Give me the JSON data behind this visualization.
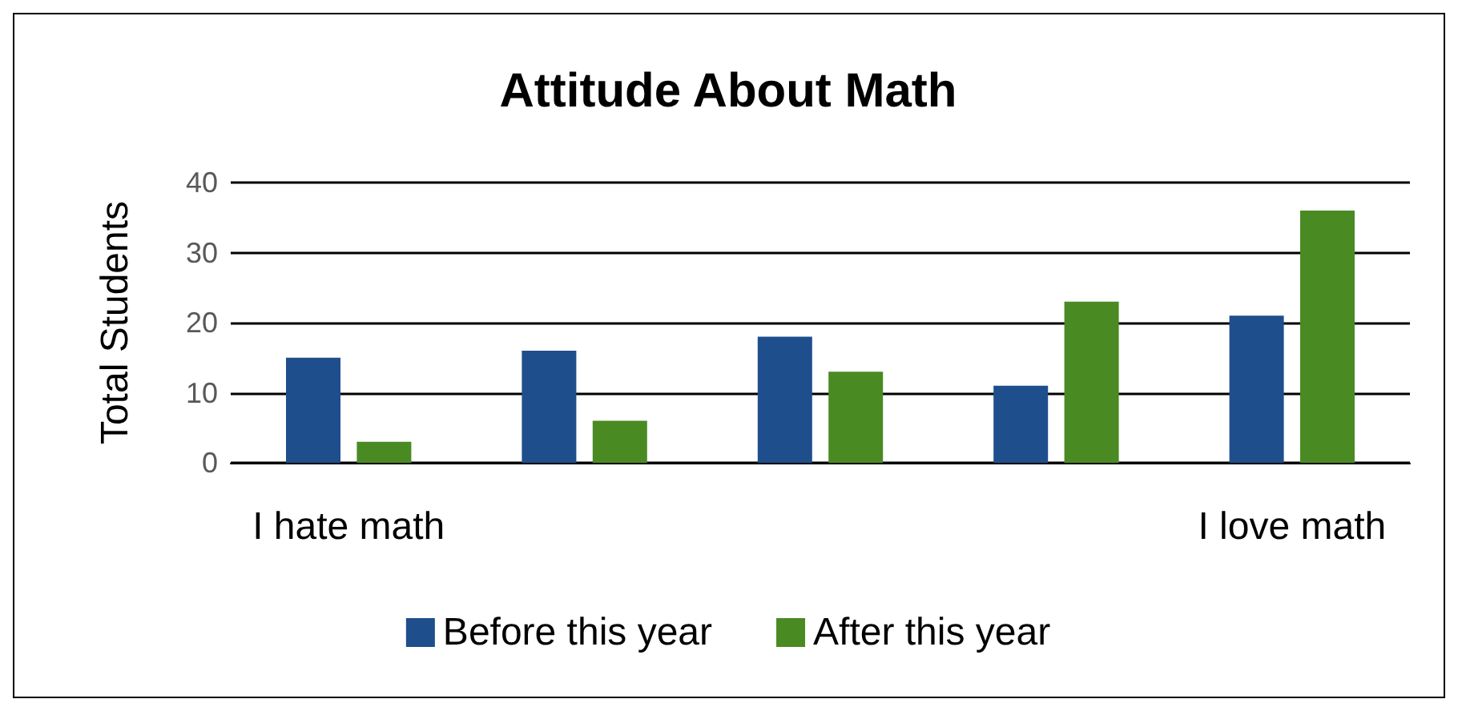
{
  "chart_data": {
    "type": "bar",
    "title": "Attitude About Math",
    "ylabel": "Total Students",
    "categories": [
      "I hate math",
      null,
      null,
      null,
      "I love math"
    ],
    "series": [
      {
        "name": "Before this year",
        "color": "#1f4e8c",
        "values": [
          15,
          16,
          18,
          11,
          21
        ]
      },
      {
        "name": "After this year",
        "color": "#4a8a22",
        "values": [
          3,
          6,
          13,
          23,
          36
        ]
      }
    ],
    "ylim": [
      0,
      40
    ],
    "yticks": [
      0,
      10,
      20,
      30,
      40
    ],
    "grid": "y",
    "legend": "bottom"
  }
}
